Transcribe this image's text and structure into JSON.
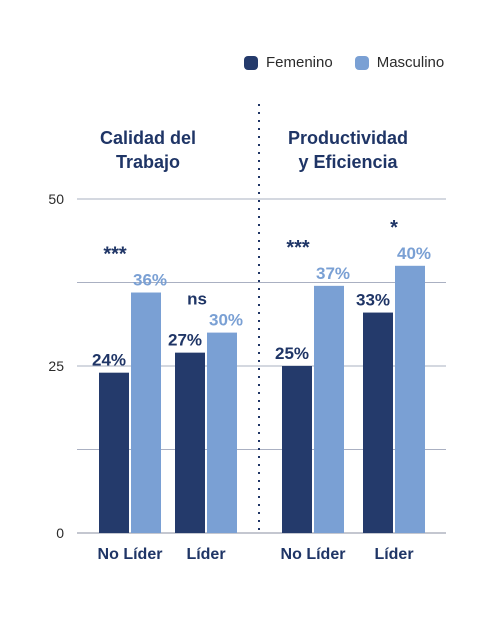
{
  "chart_data": {
    "type": "bar",
    "title": "",
    "xlabel": "",
    "ylabel": "",
    "ylim": [
      0,
      50
    ],
    "yticks": [
      0,
      25,
      50
    ],
    "grid": true,
    "legend_position": "top-right",
    "colors": {
      "Femenino": "#243a6b",
      "Masculino": "#7aa0d4"
    },
    "legend": [
      "Femenino",
      "Masculino"
    ],
    "panels": [
      {
        "title_lines": [
          "Calidad del",
          "Trabajo"
        ],
        "categories": [
          "No Líder",
          "Líder"
        ],
        "series": [
          {
            "name": "Femenino",
            "values": [
              24,
              27
            ],
            "labels": [
              "24%",
              "27%"
            ]
          },
          {
            "name": "Masculino",
            "values": [
              36,
              30
            ],
            "labels": [
              "36%",
              "30%"
            ]
          }
        ],
        "significance": [
          "***",
          "ns"
        ]
      },
      {
        "title_lines": [
          "Productividad",
          "y Eficiencia"
        ],
        "categories": [
          "No Líder",
          "Líder"
        ],
        "series": [
          {
            "name": "Femenino",
            "values": [
              25,
              33
            ],
            "labels": [
              "25%",
              "33%"
            ]
          },
          {
            "name": "Masculino",
            "values": [
              37,
              40
            ],
            "labels": [
              "37%",
              "40%"
            ]
          }
        ],
        "significance": [
          "***",
          "*"
        ]
      }
    ]
  }
}
